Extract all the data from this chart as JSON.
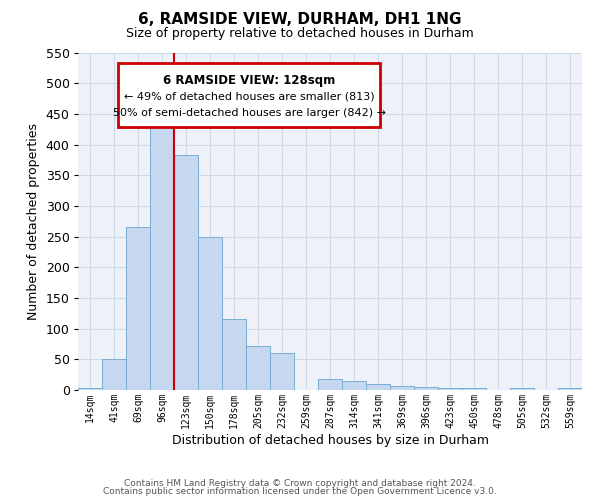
{
  "title": "6, RAMSIDE VIEW, DURHAM, DH1 1NG",
  "subtitle": "Size of property relative to detached houses in Durham",
  "xlabel": "Distribution of detached houses by size in Durham",
  "ylabel": "Number of detached properties",
  "bar_labels": [
    "14sqm",
    "41sqm",
    "69sqm",
    "96sqm",
    "123sqm",
    "150sqm",
    "178sqm",
    "205sqm",
    "232sqm",
    "259sqm",
    "287sqm",
    "314sqm",
    "341sqm",
    "369sqm",
    "396sqm",
    "423sqm",
    "450sqm",
    "478sqm",
    "505sqm",
    "532sqm",
    "559sqm"
  ],
  "bar_values": [
    3,
    50,
    265,
    430,
    383,
    250,
    115,
    72,
    60,
    0,
    18,
    15,
    9,
    6,
    5,
    3,
    4,
    0,
    4,
    0,
    4
  ],
  "bar_color": "#c5d8f0",
  "bar_edgecolor": "#7aadd4",
  "ylim": [
    0,
    550
  ],
  "yticks": [
    0,
    50,
    100,
    150,
    200,
    250,
    300,
    350,
    400,
    450,
    500,
    550
  ],
  "vline_color": "#cc0000",
  "annotation_title": "6 RAMSIDE VIEW: 128sqm",
  "annotation_line1": "← 49% of detached houses are smaller (813)",
  "annotation_line2": "50% of semi-detached houses are larger (842) →",
  "annotation_box_edgecolor": "#cc0000",
  "footer_line1": "Contains HM Land Registry data © Crown copyright and database right 2024.",
  "footer_line2": "Contains public sector information licensed under the Open Government Licence v3.0.",
  "background_color": "#ffffff",
  "grid_color": "#ccd9ea",
  "plot_bg_color": "#eef2f8"
}
